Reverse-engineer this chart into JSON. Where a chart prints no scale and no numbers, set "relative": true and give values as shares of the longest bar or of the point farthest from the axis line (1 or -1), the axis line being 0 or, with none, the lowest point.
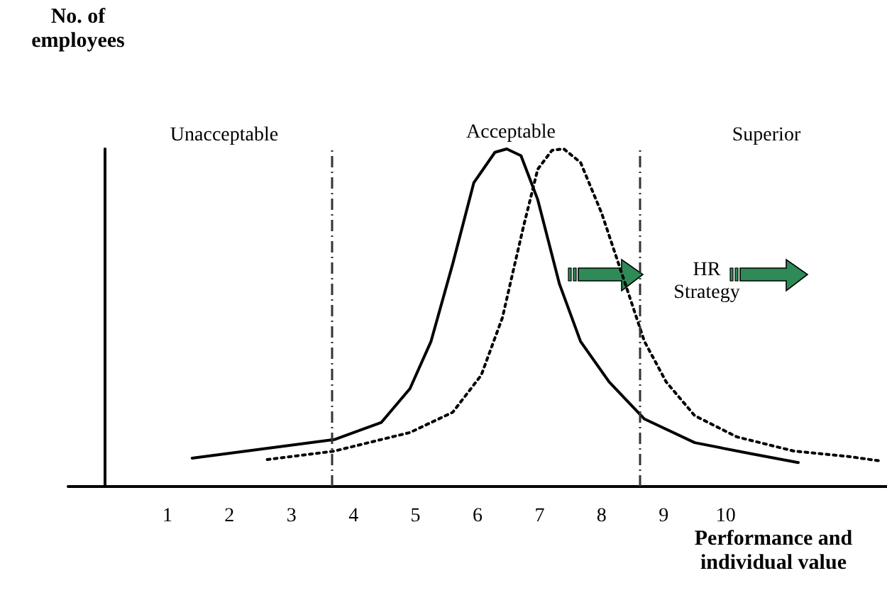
{
  "chart_data": {
    "type": "line",
    "relative": true,
    "xlabel": "Performance and individual value",
    "ylabel": "No. of employees",
    "annotations": [
      "Unacceptable",
      "Acceptable",
      "Superior",
      "HR Strategy"
    ],
    "xlim": [
      -0.6,
      12.6
    ],
    "xticks": [
      1,
      2,
      3,
      4,
      5,
      6,
      7,
      8,
      9,
      10
    ],
    "tick_labels": "x",
    "grid": false,
    "marker": "none",
    "ref_lines": [
      {
        "axis": "x",
        "value": 3.65,
        "color": "#333333",
        "line_style": "dashdot"
      },
      {
        "axis": "x",
        "value": 8.62,
        "color": "#333333",
        "line_style": "dashdot"
      }
    ],
    "series": [
      {
        "color": "#000000",
        "line_style": "solid",
        "x": [
          1.4,
          3.69,
          4.45,
          4.91,
          5.25,
          5.6,
          5.94,
          6.28,
          6.47,
          6.7,
          6.97,
          7.32,
          7.66,
          8.12,
          8.69,
          9.5,
          10.41,
          11.17
        ],
        "values": [
          0.084,
          0.139,
          0.19,
          0.29,
          0.43,
          0.66,
          0.9,
          0.99,
          1,
          0.98,
          0.85,
          0.6,
          0.43,
          0.31,
          0.2,
          0.13,
          0.097,
          0.071
        ]
      },
      {
        "color": "#000000",
        "line_style": "dotted",
        "x": [
          2.61,
          3.69,
          4.91,
          5.6,
          6.06,
          6.4,
          6.74,
          6.97,
          7.2,
          7.39,
          7.66,
          8.0,
          8.2,
          8.69,
          9.04,
          9.5,
          10.18,
          11.1,
          12.02,
          12.48
        ],
        "values": [
          0.08,
          0.105,
          0.16,
          0.22,
          0.33,
          0.5,
          0.77,
          0.94,
          0.996,
          1,
          0.96,
          0.81,
          0.7,
          0.43,
          0.31,
          0.21,
          0.147,
          0.105,
          0.088,
          0.076
        ]
      }
    ]
  }
}
